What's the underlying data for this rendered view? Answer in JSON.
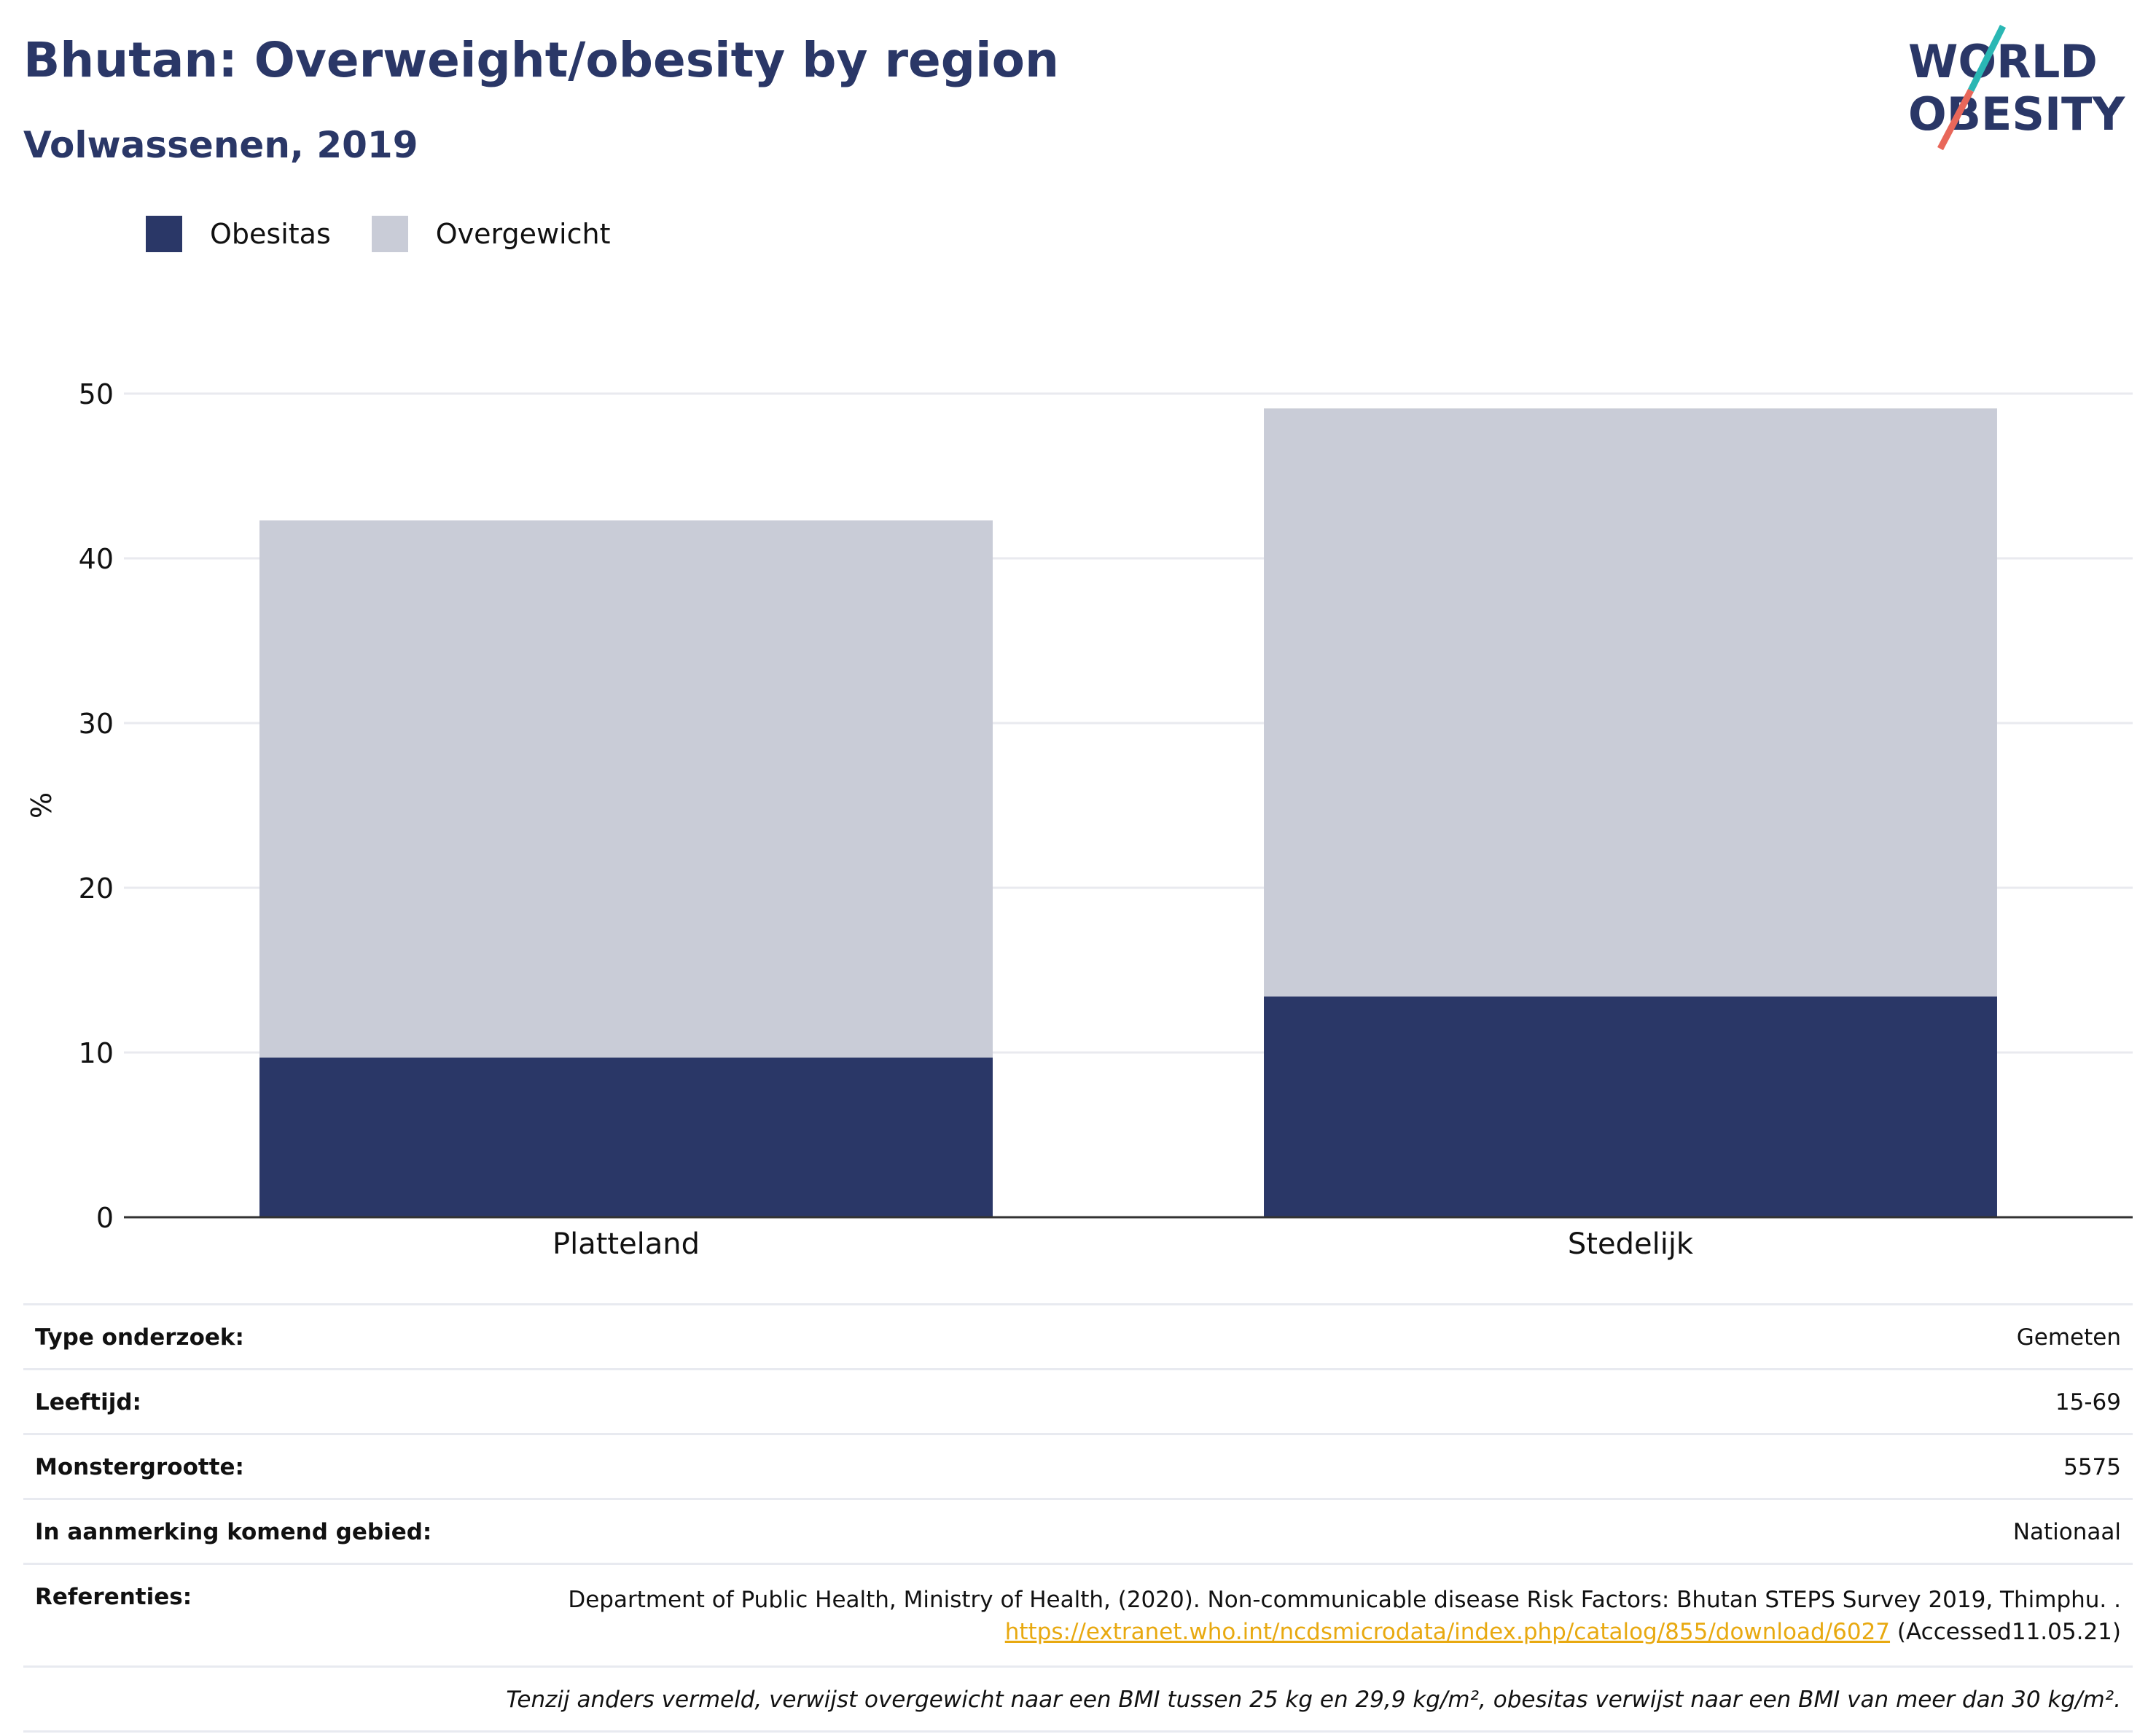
{
  "header": {
    "title": "Bhutan: Overweight/obesity by region",
    "subtitle": "Volwassenen, 2019"
  },
  "logo": {
    "line1": "WORLD",
    "line2": "OBESITY"
  },
  "colors": {
    "obesity": "#2a3767",
    "overweight": "#c9ccd7",
    "title": "#2a3767",
    "link": "#e8a910",
    "logo_teal": "#2ab7b4",
    "logo_coral": "#e8675a"
  },
  "chart_data": {
    "type": "bar",
    "stacked": true,
    "categories": [
      "Platteland",
      "Stedelijk"
    ],
    "series": [
      {
        "name": "Obesitas",
        "values": [
          9.7,
          13.4
        ]
      },
      {
        "name": "Overgewicht",
        "values": [
          32.6,
          35.7
        ]
      }
    ],
    "ylabel": "%",
    "ylim": [
      0,
      50
    ],
    "yticks": [
      0,
      10,
      20,
      30,
      40,
      50
    ],
    "grid": true,
    "legend": "top-left"
  },
  "info": {
    "survey_type": {
      "label": "Type onderzoek:",
      "value": "Gemeten"
    },
    "age": {
      "label": "Leeftijd:",
      "value": "15-69"
    },
    "sample_size": {
      "label": "Monstergrootte:",
      "value": "5575"
    },
    "area": {
      "label": "In aanmerking komend gebied:",
      "value": "Nationaal"
    },
    "references": {
      "label": "Referenties:",
      "text": "Department of Public Health, Ministry of Health, (2020). Non-communicable disease Risk Factors: Bhutan STEPS Survey 2019, Thimphu. .",
      "link": "https://extranet.who.int/ncdsmicrodata/index.php/catalog/855/download/6027",
      "accessed": "(Accessed11.05.21)"
    },
    "note": "Tenzij anders vermeld, verwijst overgewicht naar een BMI tussen 25 kg en 29,9 kg/m², obesitas verwijst naar een BMI van meer dan 30 kg/m²."
  }
}
